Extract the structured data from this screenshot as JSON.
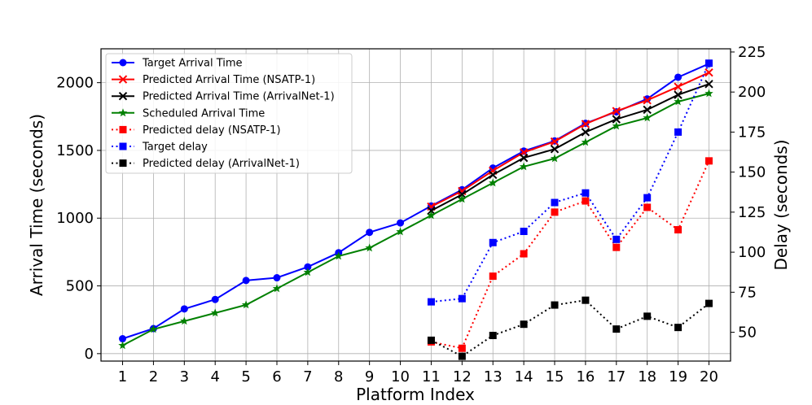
{
  "chart_data": {
    "type": "line",
    "xlabel": "Platform Index",
    "ylabel_left": "Arrival Time (seconds)",
    "ylabel_right": "Delay (seconds)",
    "x_ticks": [
      1,
      2,
      3,
      4,
      5,
      6,
      7,
      8,
      9,
      10,
      11,
      12,
      13,
      14,
      15,
      16,
      17,
      18,
      19,
      20
    ],
    "y_left_ticks": [
      0,
      500,
      1000,
      1500,
      2000
    ],
    "y_right_ticks": [
      50,
      75,
      100,
      125,
      150,
      175,
      200,
      225
    ],
    "y_left_lim": [
      -55,
      2250
    ],
    "y_right_lim": [
      32,
      227
    ],
    "grid": true,
    "legend_position": "top-left",
    "series": [
      {
        "name": "Target Arrival Time",
        "axis": "left",
        "color": "#0000ff",
        "line": "solid",
        "marker": "circle",
        "x": [
          1,
          2,
          3,
          4,
          5,
          6,
          7,
          8,
          9,
          10,
          11,
          12,
          13,
          14,
          15,
          16,
          17,
          18,
          19,
          20
        ],
        "values": [
          110,
          185,
          330,
          400,
          540,
          560,
          640,
          745,
          895,
          965,
          1090,
          1210,
          1370,
          1495,
          1570,
          1700,
          1785,
          1880,
          2040,
          2140
        ]
      },
      {
        "name": "Predicted Arrival Time (NSATP-1)",
        "axis": "left",
        "color": "#ff0000",
        "line": "solid",
        "marker": "x",
        "x": [
          11,
          12,
          13,
          14,
          15,
          16,
          17,
          18,
          19,
          20
        ],
        "values": [
          1085,
          1200,
          1350,
          1485,
          1565,
          1695,
          1790,
          1870,
          1970,
          2075
        ]
      },
      {
        "name": "Predicted Arrival Time (ArrivalNet-1)",
        "axis": "left",
        "color": "#000000",
        "line": "solid",
        "marker": "x",
        "x": [
          11,
          12,
          13,
          14,
          15,
          16,
          17,
          18,
          19,
          20
        ],
        "values": [
          1055,
          1175,
          1320,
          1445,
          1510,
          1635,
          1730,
          1800,
          1910,
          1990
        ]
      },
      {
        "name": "Scheduled Arrival Time",
        "axis": "left",
        "color": "#008000",
        "line": "solid",
        "marker": "star",
        "x": [
          1,
          2,
          3,
          4,
          5,
          6,
          7,
          8,
          9,
          10,
          11,
          12,
          13,
          14,
          15,
          16,
          17,
          18,
          19,
          20
        ],
        "values": [
          60,
          180,
          240,
          300,
          360,
          480,
          600,
          720,
          780,
          900,
          1020,
          1140,
          1260,
          1380,
          1440,
          1560,
          1680,
          1740,
          1860,
          1920
        ]
      },
      {
        "name": "Predicted delay (NSATP-1)",
        "axis": "right",
        "color": "#ff0000",
        "line": "dotted",
        "marker": "square",
        "x": [
          11,
          12,
          13,
          14,
          15,
          16,
          17,
          18,
          19,
          20
        ],
        "values": [
          44,
          40,
          85,
          99,
          125,
          132,
          103,
          128,
          114,
          157
        ]
      },
      {
        "name": "Target delay",
        "axis": "right",
        "color": "#0000ff",
        "line": "dotted",
        "marker": "square",
        "x": [
          11,
          12,
          13,
          14,
          15,
          16,
          17,
          18,
          19,
          20
        ],
        "values": [
          69,
          71,
          106,
          113,
          131,
          137,
          108,
          134,
          175,
          218
        ]
      },
      {
        "name": "Predicted delay (ArrivalNet-1)",
        "axis": "right",
        "color": "#000000",
        "line": "dotted",
        "marker": "square",
        "x": [
          11,
          12,
          13,
          14,
          15,
          16,
          17,
          18,
          19,
          20
        ],
        "values": [
          45,
          35,
          48,
          55,
          67,
          70,
          52,
          60,
          53,
          68
        ]
      }
    ]
  }
}
